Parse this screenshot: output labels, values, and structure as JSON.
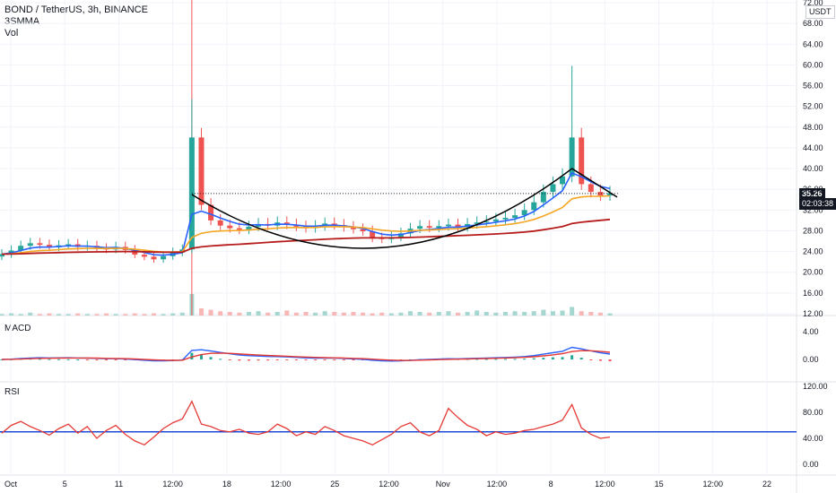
{
  "header": {
    "symbol_line": "BOND / TetherUS, 3h, BINANCE",
    "indicator_line": "3SMMA",
    "volume_label": "Vol",
    "currency": "USDT"
  },
  "price_badge": {
    "price": "35.26",
    "countdown": "02:03:38"
  },
  "colors": {
    "background": "#ffffff",
    "up": "#26a69a",
    "down": "#ef5350",
    "ma_fast": "#2962ff",
    "ma_mid": "#f5a623",
    "ma_slow": "#b71c1c",
    "pattern": "#000000",
    "macd": "#2962ff",
    "signal": "#e53935",
    "rsi": "#e53935",
    "rsi_level": "#1e4bd8"
  },
  "chart_data": [
    {
      "type": "candlestick",
      "name": "price",
      "y_ticks": [
        "72.00",
        "68.00",
        "64.00",
        "60.00",
        "56.00",
        "52.00",
        "48.00",
        "44.00",
        "40.00",
        "36.00",
        "32.00",
        "28.00",
        "24.00",
        "20.00",
        "16.00",
        "12.00"
      ],
      "ylim": [
        12,
        72
      ],
      "x_ticks": [
        "Oct",
        "5",
        "11",
        "12:00",
        "18",
        "12:00",
        "25",
        "12:00",
        "Nov",
        "12:00",
        "8",
        "12:00",
        "15",
        "12:00",
        "22"
      ],
      "close": [
        23.5,
        24.2,
        25.1,
        25.6,
        25.3,
        24.8,
        25.2,
        25.4,
        24.9,
        25.1,
        24.6,
        24.4,
        24.9,
        24.3,
        23.4,
        23.0,
        22.5,
        23.1,
        23.8,
        24.4,
        46,
        33,
        30,
        29,
        28.5,
        28.2,
        28.8,
        29.3,
        29,
        29.6,
        29.2,
        28.8,
        28.5,
        28.9,
        29.4,
        29.1,
        28.7,
        28.3,
        27.9,
        26.6,
        26.4,
        26.8,
        27.5,
        28.4,
        28.9,
        28.6,
        28.9,
        29.2,
        28.7,
        29.3,
        29.6,
        29.8,
        30.2,
        30.5,
        31,
        32,
        33.5,
        35.5,
        37,
        38.5,
        46,
        37,
        35.5,
        34.8,
        35.26
      ],
      "overlays": [
        {
          "name": "3SMMA fast",
          "color_key": "ma_fast"
        },
        {
          "name": "3SMMA mid",
          "color_key": "ma_mid"
        },
        {
          "name": "3SMMA slow",
          "color_key": "ma_slow"
        }
      ],
      "pattern": "cup (hand-drawn arc) from 12:00 (Oct 15) to ~Nov 9",
      "volume": [
        2,
        3,
        2,
        4,
        2,
        3,
        2,
        2,
        3,
        2,
        2,
        3,
        2,
        2,
        3,
        2,
        3,
        2,
        3,
        4,
        30,
        10,
        8,
        6,
        5,
        4,
        5,
        6,
        4,
        5,
        7,
        4,
        5,
        4,
        6,
        5,
        4,
        5,
        4,
        3,
        4,
        3,
        4,
        6,
        5,
        4,
        5,
        6,
        4,
        5,
        7,
        5,
        4,
        5,
        6,
        5,
        6,
        8,
        6,
        7,
        12,
        6,
        5,
        4,
        3
      ]
    },
    {
      "type": "line",
      "name": "MACD",
      "y_ticks": [
        "4.00",
        "0.00"
      ],
      "ylim": [
        -0.9,
        5.5
      ],
      "series": [
        {
          "name": "MACD",
          "color_key": "macd"
        },
        {
          "name": "Signal",
          "color_key": "signal"
        }
      ]
    },
    {
      "type": "line",
      "name": "RSI",
      "y_ticks": [
        "120.00",
        "80.00",
        "40.00",
        "0.00"
      ],
      "ylim": [
        -10,
        125
      ],
      "level": 50,
      "values": [
        48,
        60,
        66,
        58,
        52,
        45,
        55,
        62,
        48,
        58,
        40,
        52,
        60,
        46,
        36,
        30,
        42,
        55,
        64,
        70,
        97,
        62,
        58,
        52,
        50,
        54,
        48,
        46,
        50,
        62,
        55,
        44,
        50,
        46,
        58,
        52,
        44,
        40,
        36,
        30,
        38,
        46,
        58,
        64,
        50,
        44,
        52,
        86,
        72,
        60,
        54,
        44,
        50,
        46,
        48,
        52,
        54,
        58,
        62,
        68,
        92,
        56,
        46,
        40,
        42
      ]
    }
  ]
}
